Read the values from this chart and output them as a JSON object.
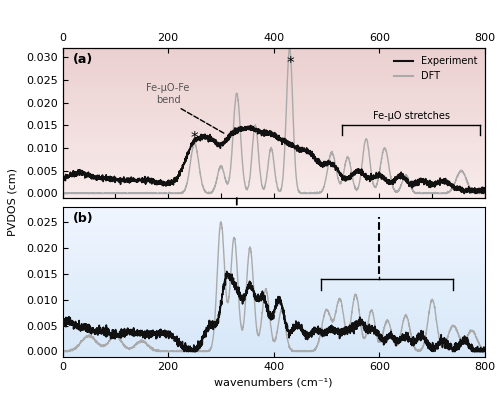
{
  "xlim": [
    0,
    800
  ],
  "ylim_a": [
    -0.001,
    0.032
  ],
  "ylim_b": [
    -0.001,
    0.028
  ],
  "yticks_a": [
    0.0,
    0.005,
    0.01,
    0.015,
    0.02,
    0.025,
    0.03
  ],
  "yticks_b": [
    0.0,
    0.005,
    0.01,
    0.015,
    0.02,
    0.025
  ],
  "xticks": [
    0,
    200,
    400,
    600,
    800
  ],
  "ylabel": "PVDOS (cm)",
  "xlabel": "wavenumbers (cm⁻¹)",
  "exp_color": "#111111",
  "dft_color": "#aaaaaa",
  "label_a": "(a)",
  "label_b": "(b)",
  "legend_exp": "Experiment",
  "legend_dft": "DFT",
  "annotation_color": "#555555"
}
